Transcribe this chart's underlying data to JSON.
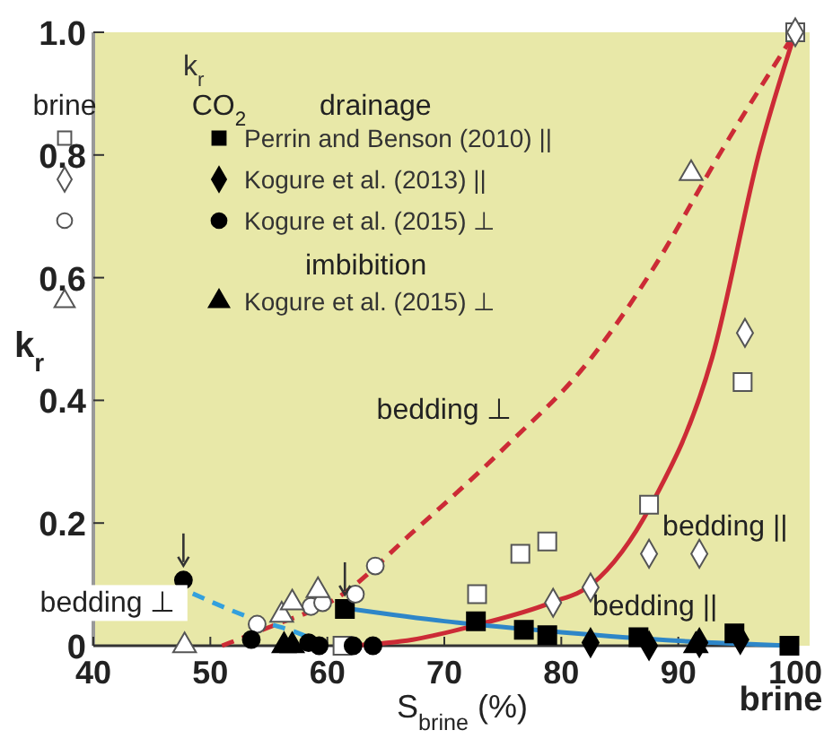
{
  "chart_data": {
    "type": "scatter",
    "xlabel": "S$_{brine}$ (%)",
    "ylabel": "k$_{r}$",
    "legend_title": "k$_{r}$",
    "legend": "top left",
    "grid": false,
    "xlim": [
      40,
      100
    ],
    "xticks": [
      40,
      50,
      60,
      70,
      80,
      90,
      100
    ],
    "ylim": [
      0,
      1
    ],
    "yticks": [
      0,
      0.2,
      0.4,
      0.6,
      0.8,
      {
        "value": 1,
        "label": "1.0"
      }
    ],
    "annotations": [
      "brine",
      "CO$_{2}$",
      "drainage",
      "imbibition",
      "brine",
      "bedding ⊥",
      "bedding ||",
      "bedding ||",
      "bedding ⊥"
    ],
    "series": [
      {
        "type": "line",
        "color": "#cc2b36",
        "line_style": "dashed",
        "x": [
          51,
          55,
          61,
          67.3,
          75,
          82.6,
          87.7,
          93.8,
          100
        ],
        "values": [
          0,
          0.03,
          0.08,
          0.185,
          0.32,
          0.47,
          0.61,
          0.81,
          1
        ]
      },
      {
        "type": "line",
        "color": "#cc2b36",
        "line_style": "solid",
        "x": [
          62,
          67.3,
          73,
          79.1,
          82.6,
          87.7,
          92.9,
          97,
          100
        ],
        "values": [
          0,
          0.01,
          0.035,
          0.07,
          0.1,
          0.23,
          0.47,
          0.81,
          1
        ]
      },
      {
        "type": "line",
        "color": "#33a0dd",
        "line_style": "dashed",
        "x": [
          48.5,
          53.5,
          57.6,
          60
        ],
        "values": [
          0.085,
          0.045,
          0.02,
          0
        ]
      },
      {
        "type": "line",
        "color": "#2e86c8",
        "line_style": "solid",
        "x": [
          62,
          70,
          80,
          90,
          100
        ],
        "values": [
          0.06,
          0.04,
          0.022,
          0.008,
          0
        ]
      },
      {
        "marker": "square",
        "color": "#ffffff",
        "x": [
          100,
          95.5,
          87.5,
          78.8,
          76.5,
          72.8,
          61.3
        ],
        "values": [
          1,
          0.43,
          0.23,
          0.17,
          0.15,
          0.084,
          0
        ]
      },
      {
        "name": "Perrin and Benson (2010) ||",
        "marker": "square",
        "color": "#000000",
        "x": [
          61.5,
          72.7,
          76.8,
          78.8,
          86.6,
          94.8,
          99.5
        ],
        "values": [
          0.06,
          0.04,
          0.026,
          0.017,
          0.014,
          0.02,
          0
        ]
      },
      {
        "marker": "diamond",
        "color": "#ffffff",
        "x": [
          100,
          95.7,
          91.8,
          87.5,
          82.5,
          79.3
        ],
        "values": [
          1,
          0.51,
          0.15,
          0.15,
          0.095,
          0.07
        ]
      },
      {
        "name": "Kogure et al. (2013) ||",
        "marker": "diamond",
        "color": "#000000",
        "x": [
          82.5,
          87.5,
          91.8,
          95.3
        ],
        "values": [
          0.005,
          0,
          0.005,
          0.01
        ]
      },
      {
        "marker": "circle",
        "color": "#ffffff",
        "x": [
          64.1,
          62.4,
          58.6,
          59.6,
          54
        ],
        "values": [
          0.13,
          0.084,
          0.064,
          0.07,
          0.035
        ]
      },
      {
        "name": "Kogure et al. (2015) ⊥",
        "marker": "circle",
        "color": "#000000",
        "x": [
          47.7,
          53.5,
          58.4,
          59.3,
          62.2,
          63.9
        ],
        "values": [
          0.107,
          0.01,
          0.005,
          0,
          0,
          0
        ]
      },
      {
        "marker": "triangle",
        "color": "#ffffff",
        "x": [
          47.8,
          56.1,
          57,
          59.2,
          91.1
        ],
        "values": [
          0,
          0.05,
          0.07,
          0.09,
          0.77
        ]
      },
      {
        "name": "Kogure et al. (2015) ⊥",
        "marker": "triangle",
        "color": "#000000",
        "x": [
          56.3,
          57,
          91.5
        ],
        "values": [
          0,
          0,
          0
        ]
      }
    ]
  }
}
